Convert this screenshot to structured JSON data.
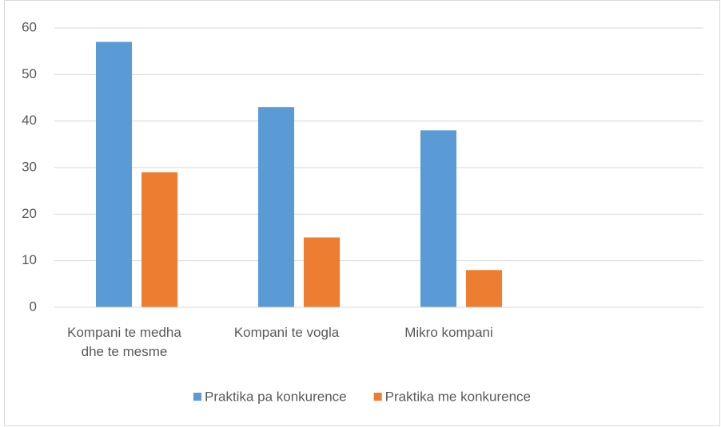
{
  "chart_data": {
    "type": "bar",
    "categories": [
      "Kompani te medha dhe te mesme",
      "Kompani te vogla",
      "Mikro kompani",
      null
    ],
    "series": [
      {
        "name": "Praktika pa konkurence",
        "color": "#5b9bd5",
        "values": [
          57,
          43,
          38,
          null
        ]
      },
      {
        "name": "Praktika me konkurence",
        "color": "#ed7d31",
        "values": [
          29,
          15,
          8,
          null
        ]
      }
    ],
    "ylim": [
      0,
      60
    ],
    "yticks": [
      0,
      10,
      20,
      30,
      40,
      50,
      60
    ],
    "grid": true,
    "legend": "bottom"
  }
}
